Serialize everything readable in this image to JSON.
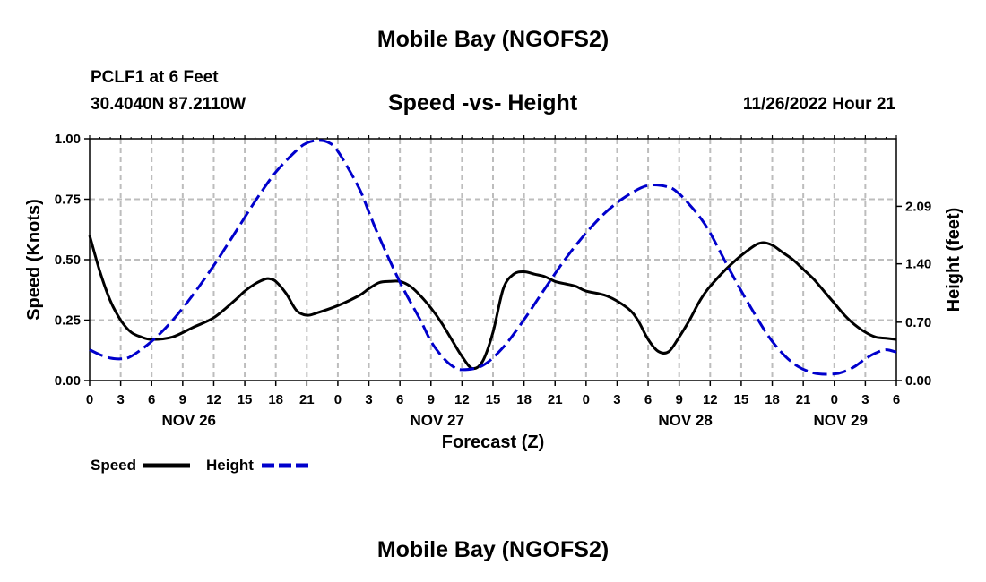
{
  "header": {
    "title": "Mobile Bay (NGOFS2)",
    "station": "PCLF1 at 6 Feet",
    "coords": "30.4040N  87.2110W",
    "subtitle": "Speed -vs- Height",
    "timestamp": "11/26/2022 Hour 21"
  },
  "footer": {
    "title": "Mobile Bay (NGOFS2)"
  },
  "chart_data": {
    "type": "line",
    "xlabel": "Forecast (Z)",
    "ylabel": "Speed (Knots)",
    "y2label": "Height (feet)",
    "xlim": [
      0,
      78
    ],
    "ylim": [
      0,
      1
    ],
    "y2lim": [
      0,
      2.9
    ],
    "x_ticks": [
      0,
      3,
      6,
      9,
      12,
      15,
      18,
      21,
      24,
      27,
      30,
      33,
      36,
      39,
      42,
      45,
      48,
      51,
      54,
      57,
      60,
      63,
      66,
      69,
      72,
      75,
      78
    ],
    "x_tick_labels": [
      "0",
      "3",
      "6",
      "9",
      "12",
      "15",
      "18",
      "21",
      "0",
      "3",
      "6",
      "9",
      "12",
      "15",
      "18",
      "21",
      "0",
      "3",
      "6",
      "9",
      "12",
      "15",
      "18",
      "21",
      "0",
      "3",
      "6"
    ],
    "y_ticks": [
      0,
      0.25,
      0.5,
      0.75,
      1.0
    ],
    "y_tick_labels": [
      "0.00",
      "0.25",
      "0.50",
      "0.75",
      "1.00"
    ],
    "y2_ticks": [
      0,
      0.7,
      1.4,
      2.09
    ],
    "y2_tick_labels": [
      "0.00",
      "0.70",
      "1.40",
      "2.09"
    ],
    "date_labels": [
      {
        "x": 9.6,
        "label": "NOV 26"
      },
      {
        "x": 33.6,
        "label": "NOV 27"
      },
      {
        "x": 57.6,
        "label": "NOV 28"
      },
      {
        "x": 72.6,
        "label": "NOV 29"
      }
    ],
    "grid": true,
    "series": [
      {
        "name": "Speed",
        "axis": "left",
        "color": "#000000",
        "dash": "solid",
        "x": [
          0,
          1,
          2,
          3,
          4,
          5,
          6,
          8,
          10,
          12,
          14,
          15,
          16,
          17,
          17.5,
          18,
          19,
          20,
          21,
          22,
          24,
          26,
          27,
          28,
          29,
          30,
          31,
          32,
          33,
          34,
          35,
          36,
          37,
          38,
          39,
          40,
          41,
          42,
          43,
          44,
          45,
          46,
          47,
          48,
          50,
          52,
          53,
          54,
          55,
          56,
          57,
          58,
          59,
          60,
          62,
          64,
          65,
          66,
          67,
          68,
          69,
          70,
          71,
          72,
          73,
          74,
          75,
          76,
          77,
          78
        ],
        "y": [
          0.6,
          0.45,
          0.33,
          0.25,
          0.2,
          0.18,
          0.17,
          0.18,
          0.22,
          0.26,
          0.33,
          0.37,
          0.4,
          0.42,
          0.42,
          0.41,
          0.36,
          0.29,
          0.27,
          0.28,
          0.31,
          0.35,
          0.38,
          0.405,
          0.41,
          0.41,
          0.39,
          0.35,
          0.3,
          0.24,
          0.17,
          0.1,
          0.05,
          0.08,
          0.2,
          0.38,
          0.44,
          0.45,
          0.44,
          0.43,
          0.41,
          0.4,
          0.39,
          0.37,
          0.35,
          0.3,
          0.25,
          0.17,
          0.12,
          0.12,
          0.18,
          0.25,
          0.33,
          0.39,
          0.48,
          0.55,
          0.57,
          0.56,
          0.53,
          0.5,
          0.46,
          0.42,
          0.37,
          0.32,
          0.27,
          0.23,
          0.2,
          0.18,
          0.175,
          0.17
        ]
      },
      {
        "name": "Height",
        "axis": "right",
        "color": "#0000cc",
        "dash": "dashed",
        "x": [
          0,
          1,
          2,
          3,
          4,
          6,
          8,
          10,
          12,
          14,
          16,
          18,
          20,
          21,
          22,
          23,
          24,
          26,
          27,
          28,
          30,
          32,
          33,
          34,
          35,
          36,
          38,
          40,
          42,
          44,
          46,
          48,
          50,
          52,
          54,
          56,
          57,
          58,
          59,
          60,
          62,
          64,
          66,
          68,
          70,
          72,
          73,
          74,
          75,
          76,
          77,
          78
        ],
        "y": [
          0.37,
          0.31,
          0.27,
          0.26,
          0.29,
          0.47,
          0.72,
          1.03,
          1.38,
          1.76,
          2.15,
          2.5,
          2.76,
          2.85,
          2.88,
          2.86,
          2.75,
          2.32,
          2.02,
          1.72,
          1.18,
          0.72,
          0.47,
          0.3,
          0.18,
          0.13,
          0.18,
          0.4,
          0.73,
          1.1,
          1.46,
          1.77,
          2.03,
          2.22,
          2.34,
          2.32,
          2.24,
          2.11,
          1.96,
          1.77,
          1.3,
          0.86,
          0.47,
          0.21,
          0.09,
          0.08,
          0.11,
          0.17,
          0.26,
          0.33,
          0.37,
          0.34
        ]
      }
    ],
    "legend": [
      {
        "label": "Speed",
        "color": "#000000",
        "dash": "solid"
      },
      {
        "label": "Height",
        "color": "#0000cc",
        "dash": "dashed"
      }
    ],
    "legend_position": "bottom-left"
  }
}
